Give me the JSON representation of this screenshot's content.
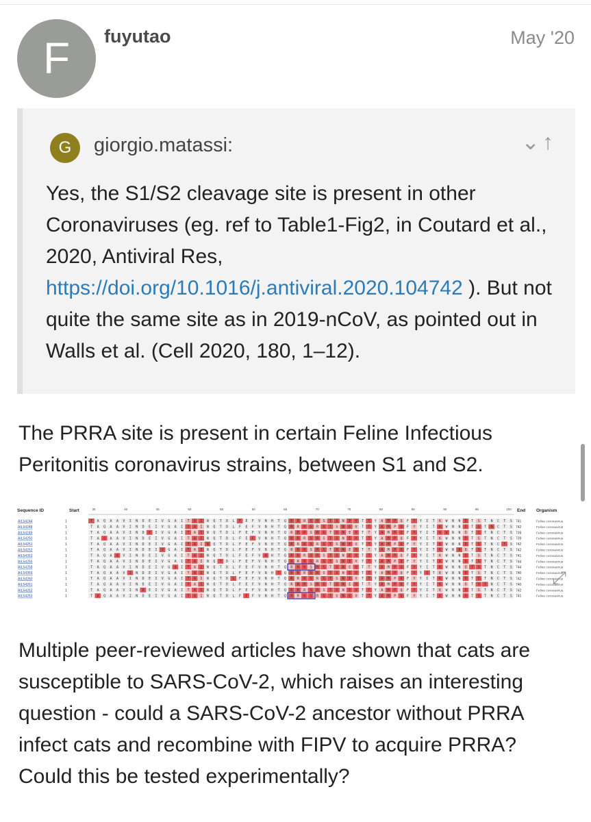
{
  "post": {
    "avatar_letter": "F",
    "username": "fuyutao",
    "date": "May '20"
  },
  "quote": {
    "avatar_letter": "G",
    "author": "giorgio.matassi:",
    "icons": [
      "chevron-down-icon",
      "arrow-up-icon"
    ],
    "text_1": "Yes, the S1/S2 cleavage site is present in other Coronaviruses (eg. ref to Table1-Fig2, in Coutard et al., 2020, Antiviral Res,",
    "link": "https://doi.org/10.1016/j.antiviral.2020.104742",
    "text_2": " ). But not quite the same site as in 2019-nCoV, as pointed out in Walls et al. (Cell 2020, 180, 1–12)."
  },
  "paragraphs": {
    "p1": "The PRRA site is present in certain Feline Infectious Peritonitis coronavirus strains, between S1 and S2.",
    "p2": "Multiple peer-reviewed articles have shown that cats are susceptible to SARS-CoV-2, which raises an interesting question - could a SARS-CoV-2 ancestor without PRRA infect cats and recombine with FIPV to acquire PRRA? Could this be tested experimentally?"
  },
  "alignment": {
    "headers": {
      "sequence_id": "Sequence ID",
      "start": "Start",
      "end": "End",
      "organism": "Organism"
    },
    "ruler": [
      "35",
      "40",
      "45",
      "50",
      "55",
      "60",
      "65",
      "70",
      "75",
      "80",
      "85",
      "90",
      "95",
      "100"
    ],
    "ids": [
      "AIL54244",
      "AIL54248",
      "AIL54249",
      "AIL54250",
      "AIL54251",
      "AIL54252",
      "AIL54353",
      "AIL54255",
      "AIL54258",
      "AIL54359",
      "AIL54260",
      "AIL54261",
      "AIL54262",
      "AIL54263"
    ],
    "starts": [
      "1",
      "1",
      "1",
      "1",
      "1",
      "1",
      "1",
      "1",
      "1",
      "1",
      "1",
      "1",
      "1",
      "1"
    ],
    "ends": [
      "741",
      "742",
      "739",
      "739",
      "742",
      "742",
      "741",
      "744",
      "744",
      "740",
      "742",
      "740",
      "742",
      "741"
    ],
    "organism": "Feline coronavirus",
    "sequence": "TAQAAVINDEIVGAITAINQTDLFEFVNHTQRRRSRSTSNEVTTYAMPQFYYITKWNNDTSTNCTS",
    "colors": {
      "highlight": "#e05555",
      "highlight_light": "#f2c2c2",
      "box": "#3b3bbf",
      "id_link": "#2255aa"
    }
  }
}
